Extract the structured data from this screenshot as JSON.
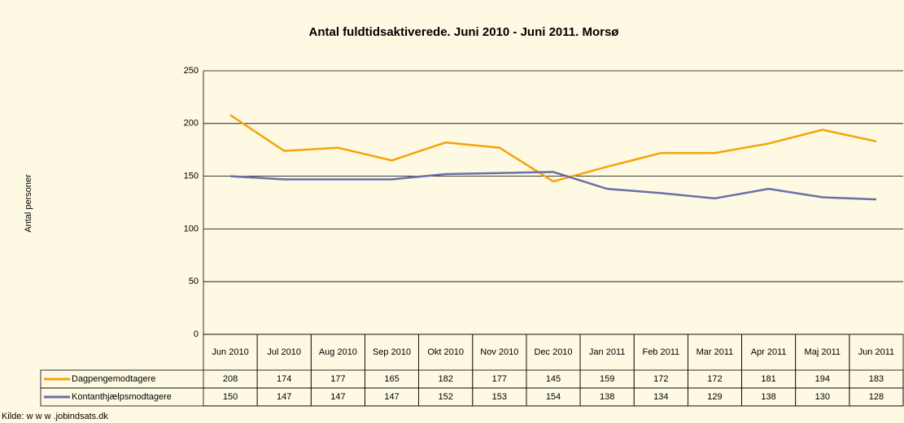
{
  "chart_data": {
    "type": "line",
    "title": "Antal fuldtidsaktiverede. Juni 2010 - Juni 2011. Morsø",
    "y_label": "Antal personer",
    "source": "Kilde: w w w .jobindsats.dk",
    "categories": [
      "Jun 2010",
      "Jul 2010",
      "Aug 2010",
      "Sep 2010",
      "Okt 2010",
      "Nov 2010",
      "Dec 2010",
      "Jan 2011",
      "Feb 2011",
      "Mar 2011",
      "Apr 2011",
      "Maj 2011",
      "Jun 2011"
    ],
    "series": [
      {
        "name": "Dagpengemodtagere",
        "color": "#f5a30a",
        "values": [
          208,
          174,
          177,
          165,
          182,
          177,
          145,
          159,
          172,
          172,
          181,
          194,
          183
        ]
      },
      {
        "name": "Kontanthjælpsmodtagere",
        "color": "#6b6fa8",
        "values": [
          150,
          147,
          147,
          147,
          152,
          153,
          154,
          138,
          134,
          129,
          138,
          130,
          128
        ]
      }
    ],
    "ylim": [
      0,
      250
    ],
    "yticks": [
      0,
      50,
      100,
      150,
      200,
      250
    ],
    "grid": true
  }
}
